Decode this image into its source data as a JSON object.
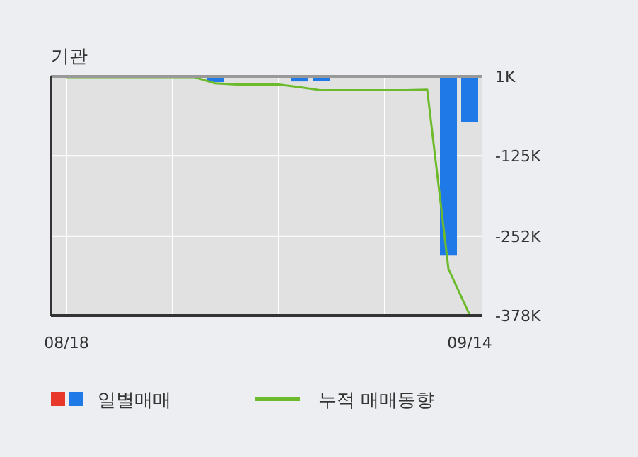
{
  "chart_data": {
    "type": "bar",
    "title": "기관",
    "categories": [
      "08/18",
      null,
      null,
      null,
      null,
      null,
      null,
      null,
      null,
      null,
      null,
      null,
      null,
      null,
      null,
      null,
      null,
      null,
      null,
      "09/14"
    ],
    "series": [
      {
        "name": "일별매매",
        "color": "#1f7ae8",
        "values": [
          0,
          0,
          0,
          0,
          0,
          0,
          0,
          -8,
          0,
          0,
          0,
          -7,
          -6,
          0,
          0,
          0,
          0,
          0,
          -283,
          -71
        ]
      },
      {
        "name": "누적 매매동향",
        "type": "line",
        "color": "#6dbb2c",
        "values": [
          0,
          0,
          0,
          0,
          0,
          0,
          0,
          -10,
          -12,
          -12,
          -12,
          -16,
          -21,
          -21,
          -21,
          -21,
          -21,
          -20,
          -304,
          -377
        ]
      }
    ],
    "ylim": [
      -378,
      1
    ],
    "yticks": [
      {
        "value": 1,
        "label": "1K"
      },
      {
        "value": -125,
        "label": "-125K"
      },
      {
        "value": -252,
        "label": "-252K"
      },
      {
        "value": -378,
        "label": "-378K"
      }
    ],
    "grid": true,
    "legend": "bottom"
  }
}
